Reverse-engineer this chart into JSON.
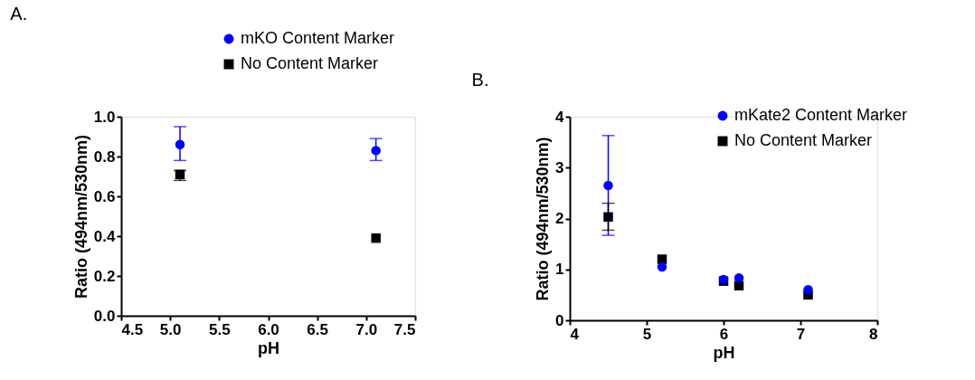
{
  "chart_data": [
    {
      "type": "scatter",
      "annotations": [
        "A."
      ],
      "xlabel": "pH",
      "ylabel": "Ratio (494nm/530nm)",
      "legend": "top",
      "xlim": [
        4.5,
        7.5
      ],
      "xticks": [
        4.5,
        {
          "value": 5,
          "label": "5.0"
        },
        5.5,
        {
          "value": 6,
          "label": "6.0"
        },
        6.5,
        {
          "value": 7,
          "label": "7.0"
        },
        7.5
      ],
      "ylim": [
        0,
        1
      ],
      "yticks": [
        {
          "value": 0,
          "label": "0.0"
        },
        0.2,
        0.4,
        0.6,
        0.8,
        {
          "value": 1,
          "label": "1.0"
        }
      ],
      "series": [
        {
          "name": "mKO Content Marker",
          "color": "#0000ff",
          "marker": "circle",
          "x": [
            5.1,
            7.1
          ],
          "values": [
            0.86,
            0.83
          ],
          "errors": [
            [
              0.78,
              0.95
            ],
            [
              0.78,
              0.89
            ]
          ]
        },
        {
          "name": "No Content Marker",
          "color": "#000000",
          "marker": "square",
          "x": [
            5.1,
            7.1
          ],
          "values": [
            0.71,
            0.39
          ],
          "errors": [
            [
              0.68,
              0.73
            ],
            null
          ]
        }
      ]
    },
    {
      "type": "scatter",
      "annotations": [
        "B."
      ],
      "xlabel": "pH",
      "ylabel": "Ratio (494nm/530nm)",
      "legend": "top right",
      "xlim": [
        4,
        8
      ],
      "xticks": [
        4,
        5,
        6,
        7,
        8
      ],
      "ylim": [
        0,
        4
      ],
      "yticks": [
        0,
        1,
        2,
        3,
        4
      ],
      "series": [
        {
          "name": "mKate2 Content Marker",
          "color": "#0000ff",
          "marker": "circle",
          "x": [
            4.5,
            5.2,
            6.0,
            6.2,
            7.1
          ],
          "values": [
            2.65,
            1.05,
            0.8,
            0.83,
            0.6
          ],
          "errors": [
            [
              1.67,
              3.63
            ],
            null,
            null,
            null,
            null
          ]
        },
        {
          "name": "No Content Marker",
          "color": "#000000",
          "marker": "square",
          "x": [
            4.5,
            5.2,
            6.0,
            6.2,
            7.1
          ],
          "values": [
            2.03,
            1.2,
            0.77,
            0.68,
            0.5
          ],
          "errors": [
            [
              1.77,
              2.3
            ],
            null,
            null,
            null,
            null
          ]
        }
      ]
    }
  ]
}
